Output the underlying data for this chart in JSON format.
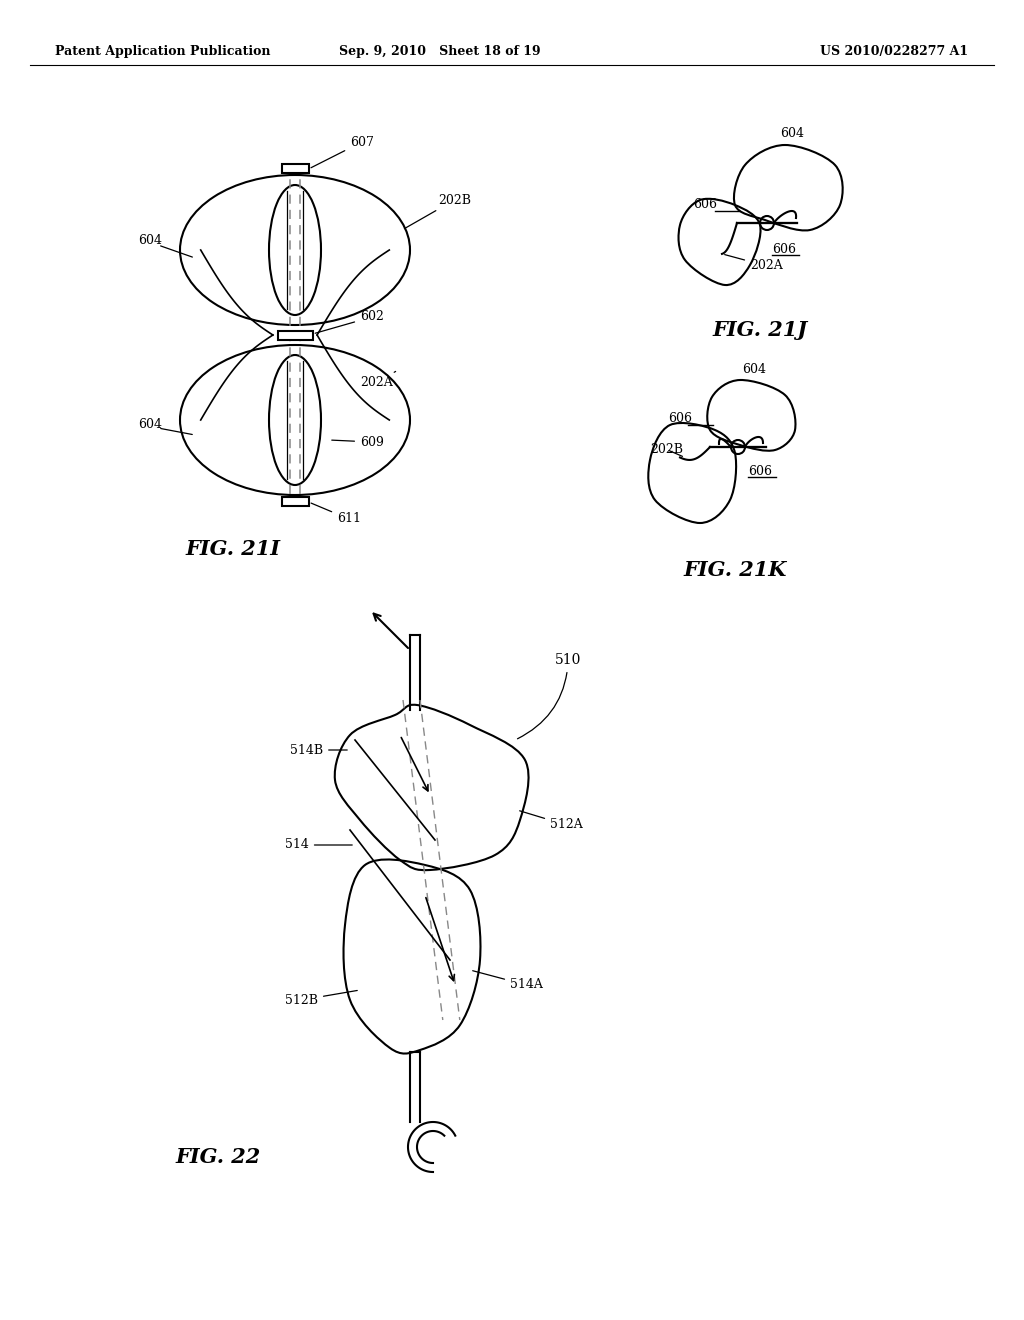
{
  "header_left": "Patent Application Publication",
  "header_center": "Sep. 9, 2010   Sheet 18 of 19",
  "header_right": "US 2010/0228277 A1",
  "fig21i_label": "FIG. 21I",
  "fig21j_label": "FIG. 21J",
  "fig21k_label": "FIG. 21K",
  "fig22_label": "FIG. 22",
  "bg_color": "#ffffff",
  "line_color": "#000000"
}
